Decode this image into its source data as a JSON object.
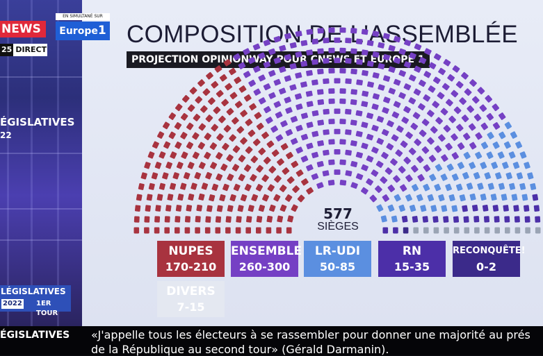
{
  "channel": {
    "logo": "NEWS",
    "direct_num": "25",
    "direct_label": "DIRECT",
    "simulcast_label": "EN SIMULTANÉ SUR",
    "partner_logo": "Europe",
    "partner_logo_num": "1",
    "side_title": "ÉGISLATIVES",
    "side_year": "22",
    "corner_title": "LÉGISLATIVES",
    "corner_year": "2022",
    "corner_round": "1ER TOUR"
  },
  "graphic": {
    "title": "COMPOSITION DE L'ASSEMBLÉE",
    "subtitle": "PROJECTION OPINIONWAY POUR CNEWS ET EUROPE 1",
    "total_seats": "577",
    "seats_label": "SIÈGES"
  },
  "parties": [
    {
      "name": "NUPES",
      "range": "170-210",
      "seats": 190,
      "color": "#a8333f"
    },
    {
      "name": "ENSEMBLE",
      "range": "260-300",
      "seats": 280,
      "color": "#7540c4"
    },
    {
      "name": "LR-UDI",
      "range": "50-85",
      "seats": 68,
      "color": "#5b8fe0"
    },
    {
      "name": "RN",
      "range": "15-35",
      "seats": 25,
      "color": "#4c2fa8"
    },
    {
      "name": "RECONQUÊTE!",
      "range": "0-2",
      "seats": 1,
      "color": "#3b2a8a"
    },
    {
      "name": "DIVERS",
      "range": "7-15",
      "seats": 11,
      "color": "#9aa4b4"
    }
  ],
  "ticker": {
    "label": "ÉGISLATIVES",
    "line1": "«J'appelle tous les électeurs à se rassembler pour donner une majorité au prés",
    "line2": "de la République au second tour» (Gérald Darmanin)."
  }
}
